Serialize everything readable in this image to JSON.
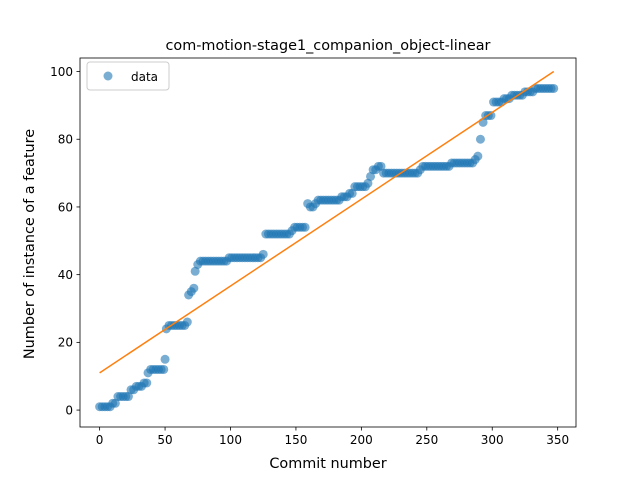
{
  "chart_data": {
    "type": "scatter",
    "title": "com-motion-stage1_companion_object-linear",
    "xlabel": "Commit number",
    "ylabel": "Number of instance of a feature",
    "xlim": [
      -15,
      364
    ],
    "ylim": [
      -5,
      104
    ],
    "xticks": [
      0,
      50,
      100,
      150,
      200,
      250,
      300,
      350
    ],
    "yticks": [
      0,
      20,
      40,
      60,
      80,
      100
    ],
    "grid": false,
    "legend_position": "top-left",
    "colors": {
      "data": "#1f77b4",
      "fit": "#ff7f0e"
    },
    "series": [
      {
        "name": "data",
        "kind": "points",
        "points": [
          [
            0,
            1
          ],
          [
            2,
            1
          ],
          [
            4,
            1
          ],
          [
            6,
            1
          ],
          [
            8,
            1
          ],
          [
            10,
            2
          ],
          [
            12,
            2
          ],
          [
            14,
            4
          ],
          [
            16,
            4
          ],
          [
            18,
            4
          ],
          [
            20,
            4
          ],
          [
            22,
            4
          ],
          [
            24,
            6
          ],
          [
            26,
            6
          ],
          [
            28,
            7
          ],
          [
            30,
            7
          ],
          [
            32,
            7
          ],
          [
            34,
            8
          ],
          [
            36,
            8
          ],
          [
            37,
            11
          ],
          [
            39,
            12
          ],
          [
            41,
            12
          ],
          [
            43,
            12
          ],
          [
            45,
            12
          ],
          [
            47,
            12
          ],
          [
            49,
            12
          ],
          [
            50,
            15
          ],
          [
            51,
            24
          ],
          [
            53,
            25
          ],
          [
            55,
            25
          ],
          [
            57,
            25
          ],
          [
            59,
            25
          ],
          [
            61,
            25
          ],
          [
            63,
            25
          ],
          [
            65,
            25
          ],
          [
            67,
            26
          ],
          [
            68,
            34
          ],
          [
            70,
            35
          ],
          [
            72,
            36
          ],
          [
            73,
            41
          ],
          [
            75,
            43
          ],
          [
            77,
            44
          ],
          [
            79,
            44
          ],
          [
            81,
            44
          ],
          [
            83,
            44
          ],
          [
            85,
            44
          ],
          [
            87,
            44
          ],
          [
            89,
            44
          ],
          [
            91,
            44
          ],
          [
            93,
            44
          ],
          [
            95,
            44
          ],
          [
            97,
            44
          ],
          [
            99,
            45
          ],
          [
            101,
            45
          ],
          [
            103,
            45
          ],
          [
            105,
            45
          ],
          [
            107,
            45
          ],
          [
            109,
            45
          ],
          [
            111,
            45
          ],
          [
            113,
            45
          ],
          [
            115,
            45
          ],
          [
            117,
            45
          ],
          [
            119,
            45
          ],
          [
            121,
            45
          ],
          [
            123,
            45
          ],
          [
            125,
            46
          ],
          [
            127,
            52
          ],
          [
            129,
            52
          ],
          [
            131,
            52
          ],
          [
            133,
            52
          ],
          [
            135,
            52
          ],
          [
            137,
            52
          ],
          [
            139,
            52
          ],
          [
            141,
            52
          ],
          [
            143,
            52
          ],
          [
            145,
            52
          ],
          [
            147,
            53
          ],
          [
            149,
            54
          ],
          [
            151,
            54
          ],
          [
            153,
            54
          ],
          [
            155,
            54
          ],
          [
            157,
            54
          ],
          [
            159,
            61
          ],
          [
            161,
            60
          ],
          [
            163,
            60
          ],
          [
            165,
            61
          ],
          [
            167,
            62
          ],
          [
            169,
            62
          ],
          [
            171,
            62
          ],
          [
            173,
            62
          ],
          [
            175,
            62
          ],
          [
            177,
            62
          ],
          [
            179,
            62
          ],
          [
            181,
            62
          ],
          [
            183,
            62
          ],
          [
            185,
            63
          ],
          [
            187,
            63
          ],
          [
            189,
            63
          ],
          [
            191,
            64
          ],
          [
            193,
            64
          ],
          [
            195,
            66
          ],
          [
            197,
            66
          ],
          [
            199,
            66
          ],
          [
            201,
            66
          ],
          [
            203,
            66
          ],
          [
            205,
            67
          ],
          [
            207,
            69
          ],
          [
            209,
            71
          ],
          [
            211,
            71
          ],
          [
            213,
            72
          ],
          [
            215,
            72
          ],
          [
            217,
            70
          ],
          [
            219,
            70
          ],
          [
            221,
            70
          ],
          [
            223,
            70
          ],
          [
            225,
            70
          ],
          [
            227,
            70
          ],
          [
            229,
            70
          ],
          [
            231,
            70
          ],
          [
            233,
            70
          ],
          [
            235,
            70
          ],
          [
            237,
            70
          ],
          [
            239,
            70
          ],
          [
            241,
            70
          ],
          [
            243,
            70
          ],
          [
            245,
            71
          ],
          [
            247,
            72
          ],
          [
            249,
            72
          ],
          [
            251,
            72
          ],
          [
            253,
            72
          ],
          [
            255,
            72
          ],
          [
            257,
            72
          ],
          [
            259,
            72
          ],
          [
            261,
            72
          ],
          [
            263,
            72
          ],
          [
            265,
            72
          ],
          [
            267,
            72
          ],
          [
            269,
            73
          ],
          [
            271,
            73
          ],
          [
            273,
            73
          ],
          [
            275,
            73
          ],
          [
            277,
            73
          ],
          [
            279,
            73
          ],
          [
            281,
            73
          ],
          [
            283,
            73
          ],
          [
            285,
            73
          ],
          [
            287,
            74
          ],
          [
            289,
            75
          ],
          [
            291,
            80
          ],
          [
            293,
            85
          ],
          [
            295,
            87
          ],
          [
            297,
            87
          ],
          [
            299,
            87
          ],
          [
            301,
            91
          ],
          [
            303,
            91
          ],
          [
            305,
            91
          ],
          [
            307,
            91
          ],
          [
            309,
            92
          ],
          [
            311,
            92
          ],
          [
            313,
            92
          ],
          [
            315,
            93
          ],
          [
            317,
            93
          ],
          [
            319,
            93
          ],
          [
            321,
            93
          ],
          [
            323,
            93
          ],
          [
            325,
            94
          ],
          [
            327,
            94
          ],
          [
            329,
            94
          ],
          [
            331,
            94
          ],
          [
            333,
            95
          ],
          [
            335,
            95
          ],
          [
            337,
            95
          ],
          [
            339,
            95
          ],
          [
            341,
            95
          ],
          [
            343,
            95
          ],
          [
            345,
            95
          ],
          [
            347,
            95
          ]
        ]
      },
      {
        "name": "",
        "kind": "line",
        "points": [
          [
            0,
            11
          ],
          [
            347,
            100
          ]
        ]
      }
    ]
  }
}
